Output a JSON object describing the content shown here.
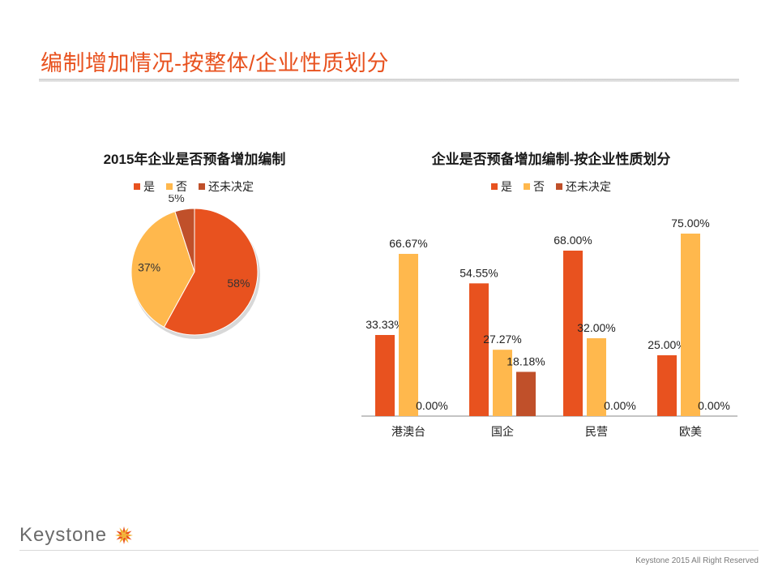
{
  "page": {
    "title": "编制增加情况-按整体/企业性质划分",
    "brand": "Keystone",
    "copyright": "Keystone 2015 All Right Reserved"
  },
  "colors": {
    "title": "#e8521f",
    "yes": "#e8521f",
    "no": "#ffb84d",
    "undecided": "#c0502a"
  },
  "chart_data": [
    {
      "type": "pie",
      "title": "2015年企业是否预备增加编制",
      "legend": [
        "是",
        "否",
        "还未决定"
      ],
      "values": [
        58,
        37,
        5
      ],
      "labels": [
        "58%",
        "37%",
        "5%"
      ],
      "colors": [
        "#e8521f",
        "#ffb84d",
        "#c0502a"
      ]
    },
    {
      "type": "bar",
      "title": "企业是否预备增加编制-按企业性质划分",
      "categories": [
        "港澳台",
        "国企",
        "民营",
        "欧美"
      ],
      "series": [
        {
          "name": "是",
          "values": [
            33.33,
            54.55,
            68.0,
            25.0
          ],
          "labels": [
            "33.33%",
            "54.55%",
            "68.00%",
            "25.00%"
          ],
          "color": "#e8521f"
        },
        {
          "name": "否",
          "values": [
            66.67,
            27.27,
            32.0,
            75.0
          ],
          "labels": [
            "66.67%",
            "27.27%",
            "32.00%",
            "75.00%"
          ],
          "color": "#ffb84d"
        },
        {
          "name": "还未决定",
          "values": [
            0.0,
            18.18,
            0.0,
            0.0
          ],
          "labels": [
            "0.00%",
            "18.18%",
            "0.00%",
            "0.00%"
          ],
          "color": "#c0502a"
        }
      ],
      "ylim": [
        0,
        80
      ]
    }
  ]
}
